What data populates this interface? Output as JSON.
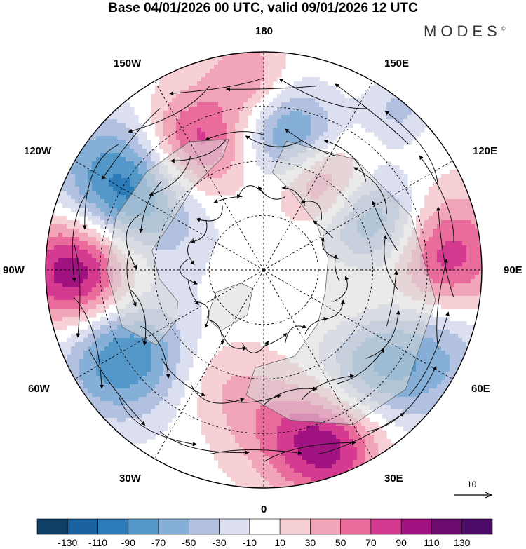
{
  "title": "Base 04/01/2026 00 UTC, valid 09/01/2026 12 UTC",
  "brand": "MODES",
  "brand_mark": "©",
  "longitude_labels": {
    "top": "180",
    "bottom": "0",
    "left": "90W",
    "right": "90E",
    "upper_left_1": "150W",
    "upper_left_2": "120W",
    "upper_right_1": "150E",
    "upper_right_2": "120E",
    "lower_left_1": "60W",
    "lower_left_2": "30W",
    "lower_right_1": "60E",
    "lower_right_2": "30E"
  },
  "vector_scale": {
    "label": "10",
    "icon": "arrow-right-icon"
  },
  "colorbar": {
    "ticks": [
      "-130",
      "-110",
      "-90",
      "-70",
      "-50",
      "-30",
      "-10",
      "10",
      "30",
      "50",
      "70",
      "90",
      "110",
      "130"
    ],
    "colors": [
      "#0f3f67",
      "#1a63a0",
      "#2b7cb9",
      "#5497c9",
      "#86afd7",
      "#b2c1df",
      "#dcdff0",
      "#ffffff",
      "#f7d0d6",
      "#f2a4b9",
      "#ea6c9d",
      "#d43a8f",
      "#a0127f",
      "#6a0b6d",
      "#4a0a66"
    ]
  },
  "anomalies": [
    {
      "lon": -120,
      "r": 0.72,
      "value": -120,
      "spread": 0.23
    },
    {
      "lon": -90,
      "r": 0.84,
      "value": 130,
      "spread": 0.2
    },
    {
      "lon": -60,
      "r": 0.76,
      "value": -100,
      "spread": 0.2
    },
    {
      "lon": 167,
      "r": 0.61,
      "value": -90,
      "spread": 0.15
    },
    {
      "lon": -150,
      "r": 0.66,
      "value": 100,
      "spread": 0.18
    },
    {
      "lon": 150,
      "r": 0.5,
      "value": 75,
      "spread": 0.14
    },
    {
      "lon": 112,
      "r": 0.56,
      "value": -80,
      "spread": 0.16
    },
    {
      "lon": 94,
      "r": 0.82,
      "value": 90,
      "spread": 0.2
    },
    {
      "lon": 63,
      "r": 0.83,
      "value": -60,
      "spread": 0.22
    },
    {
      "lon": 47,
      "r": 0.66,
      "value": -45,
      "spread": 0.16
    },
    {
      "lon": 20,
      "r": 0.88,
      "value": 90,
      "spread": 0.17
    },
    {
      "lon": 5,
      "r": 0.72,
      "value": 40,
      "spread": 0.18
    },
    {
      "lon": -20,
      "r": 0.55,
      "value": 25,
      "spread": 0.15
    },
    {
      "lon": -175,
      "r": 0.9,
      "value": 45,
      "spread": 0.12
    },
    {
      "lon": 140,
      "r": 0.96,
      "value": -35,
      "spread": 0.1
    },
    {
      "lon": 72,
      "r": 0.4,
      "value": 20,
      "spread": 0.14
    }
  ]
}
